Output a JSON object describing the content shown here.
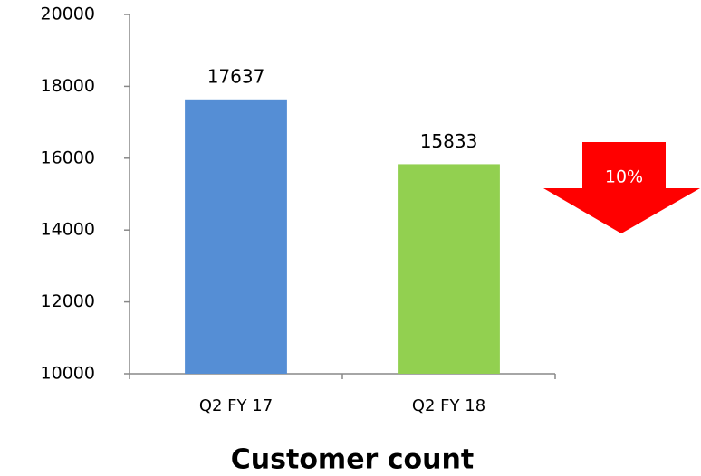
{
  "chart_data": {
    "type": "bar",
    "x_label": "Customer count",
    "categories": [
      "Q2 FY 17",
      "Q2 FY 18"
    ],
    "values": [
      17637,
      15833
    ],
    "colors": [
      "#558ed5",
      "#92d050"
    ],
    "ylim": [
      10000,
      20000
    ],
    "yticks": [
      10000,
      12000,
      14000,
      16000,
      18000,
      20000
    ],
    "annotation": "10%"
  }
}
